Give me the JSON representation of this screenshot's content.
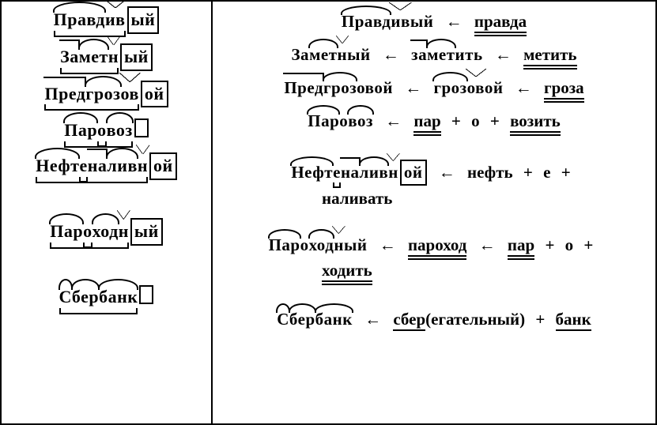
{
  "colors": {
    "fg": "#000000",
    "bg": "#ffffff"
  },
  "font": {
    "family": "Times New Roman",
    "size_pt": 22,
    "weight": "bold"
  },
  "arrow": "←",
  "plus": "+",
  "left": {
    "w1": {
      "root": "Правд",
      "suf1": "ив",
      "end": "ый"
    },
    "w2": {
      "pre": "За",
      "root": "мет",
      "suf1": "н",
      "end": "ый"
    },
    "w3": {
      "pre": "Пред",
      "root": "гроз",
      "suf1": "ов",
      "end": "ой"
    },
    "w4": {
      "root1": "Пар",
      "conn": "о",
      "root2": "воз"
    },
    "w5": {
      "root1": "Нефт",
      "conn": "е",
      "pre": "на",
      "root2": "лив",
      "suf1": "н",
      "end": "ой"
    },
    "w6": {
      "root1": "Пар",
      "conn": "о",
      "root2": "ход",
      "suf1": "н",
      "end": "ый"
    },
    "w7": {
      "root1": "С",
      "root2": "бер",
      "root3": "банк"
    }
  },
  "right": {
    "r1": {
      "word_root": "Правд",
      "word_suf": "ив",
      "word_end": "ый",
      "src": "правда"
    },
    "r2": {
      "word_pre": "За",
      "word_root": "мет",
      "word_suf": "н",
      "word_end": "ый",
      "mid_pre": "за",
      "mid_root": "мет",
      "mid_rest": "ить",
      "src": "метить"
    },
    "r3": {
      "word_pre": "Пред",
      "word_root": "гроз",
      "word_rest": "овой",
      "mid_root": "гроз",
      "mid_suf": "ов",
      "mid_rest": "ой",
      "src": "гроза"
    },
    "r4": {
      "word_root1": "Пар",
      "word_conn": "о",
      "word_root2": "воз",
      "p1": "пар",
      "conn": "о",
      "p2": "возить"
    },
    "r5": {
      "word_root1": "Нефт",
      "word_conn": "е",
      "word_pre": "на",
      "word_root2": "лив",
      "word_suf": "н",
      "word_end": "ой",
      "p1": "нефть",
      "conn": "е",
      "p2": "наливать"
    },
    "r6": {
      "word_root1": "Пар",
      "word_conn": "о",
      "word_root2": "ход",
      "word_suf": "н",
      "word_end": "ый",
      "mid": "пароход",
      "p1": "пар",
      "conn": "о",
      "p2": "ходить"
    },
    "r7": {
      "word_root1": "С",
      "word_root2": "бер",
      "word_root3": "банк",
      "p1": "сбер",
      "paren": "(егательный)",
      "p2": "банк"
    }
  }
}
